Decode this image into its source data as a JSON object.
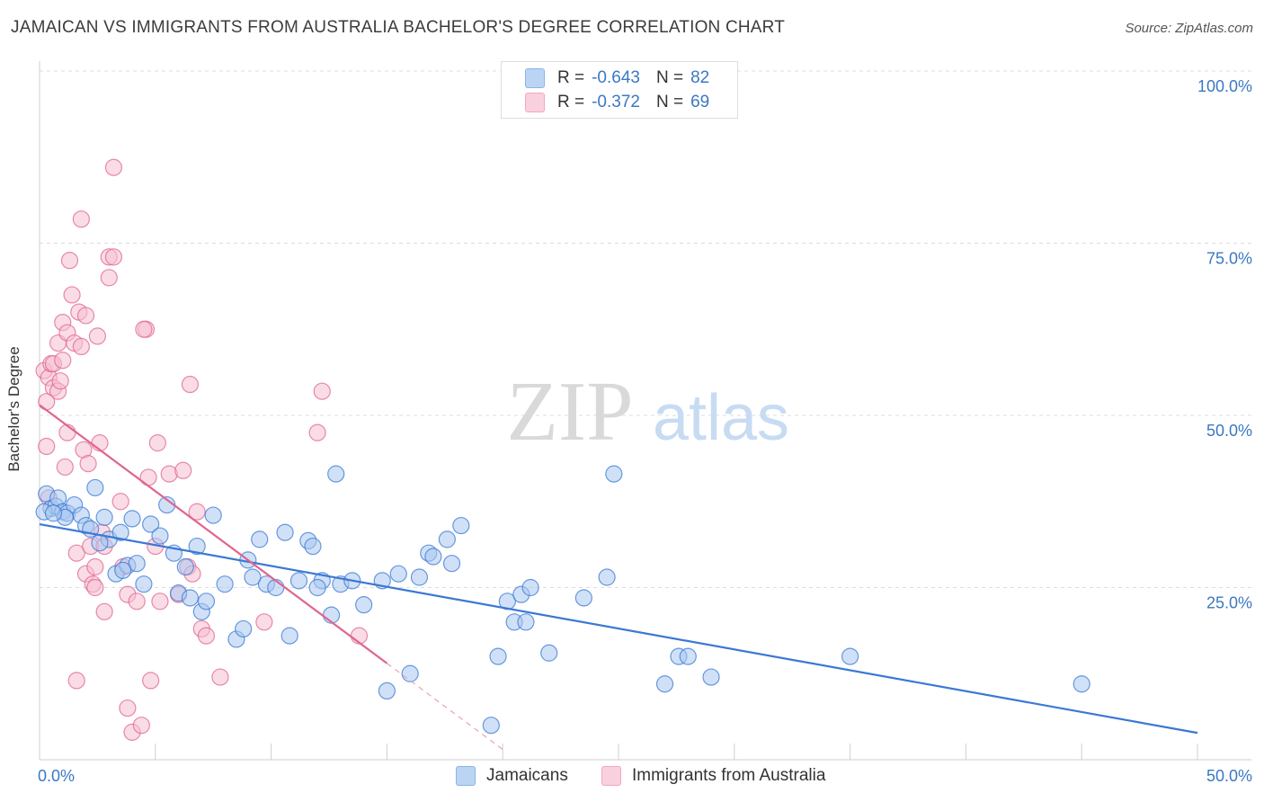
{
  "title": "JAMAICAN VS IMMIGRANTS FROM AUSTRALIA BACHELOR'S DEGREE CORRELATION CHART",
  "source": "Source: ZipAtlas.com",
  "watermark": {
    "zip": "ZIP",
    "atlas": "atlas"
  },
  "legend": {
    "rows": [
      {
        "r_label": "R =",
        "r_value": "-0.643",
        "n_label": "N =",
        "n_value": "82",
        "color": "#8ab4ea"
      },
      {
        "r_label": "R =",
        "r_value": "-0.372",
        "n_label": "N =",
        "n_value": "69",
        "color": "#f4a7c0"
      }
    ]
  },
  "bottom_legend": [
    {
      "label": "Jamaicans",
      "color": "#8ab4ea"
    },
    {
      "label": "Immigrants from Australia",
      "color": "#f4a7c0"
    }
  ],
  "chart_data": {
    "type": "scatter",
    "title": "JAMAICAN VS IMMIGRANTS FROM AUSTRALIA BACHELOR'S DEGREE CORRELATION CHART",
    "xlabel": "",
    "ylabel": "Bachelor's Degree",
    "xlim": [
      0,
      50
    ],
    "ylim": [
      0,
      100
    ],
    "x_tick_labels": [
      "0.0%",
      "50.0%"
    ],
    "y_tick_labels": [
      "25.0%",
      "50.0%",
      "75.0%",
      "100.0%"
    ],
    "y_ticks": [
      25,
      50,
      75,
      100
    ],
    "grid": true,
    "legend_position": "top-center",
    "series": [
      {
        "name": "Jamaicans",
        "color": "#3b78d4",
        "fill": "#a9c8f0",
        "trend": {
          "x": [
            0,
            50
          ],
          "y": [
            34.2,
            3.9
          ]
        },
        "points": [
          [
            0.3,
            38.6
          ],
          [
            0.5,
            36.5
          ],
          [
            0.7,
            36.8
          ],
          [
            0.8,
            38.0
          ],
          [
            1.0,
            36.0
          ],
          [
            1.2,
            35.8
          ],
          [
            1.5,
            37.0
          ],
          [
            1.8,
            35.5
          ],
          [
            2.0,
            34.0
          ],
          [
            2.2,
            33.5
          ],
          [
            2.4,
            39.5
          ],
          [
            2.8,
            35.2
          ],
          [
            3.0,
            32.0
          ],
          [
            3.3,
            27.0
          ],
          [
            3.5,
            33.0
          ],
          [
            3.8,
            28.2
          ],
          [
            4.2,
            28.5
          ],
          [
            4.0,
            35.0
          ],
          [
            4.5,
            25.5
          ],
          [
            4.8,
            34.2
          ],
          [
            5.2,
            32.5
          ],
          [
            5.5,
            37.0
          ],
          [
            5.8,
            30.0
          ],
          [
            6.0,
            24.2
          ],
          [
            6.3,
            28.0
          ],
          [
            6.5,
            23.5
          ],
          [
            6.8,
            31.0
          ],
          [
            7.0,
            21.5
          ],
          [
            7.5,
            35.5
          ],
          [
            8.0,
            25.5
          ],
          [
            8.5,
            17.5
          ],
          [
            8.8,
            19.0
          ],
          [
            9.0,
            29.0
          ],
          [
            9.5,
            32.0
          ],
          [
            9.8,
            25.5
          ],
          [
            10.2,
            25.0
          ],
          [
            10.6,
            33.0
          ],
          [
            10.8,
            18.0
          ],
          [
            11.2,
            26.0
          ],
          [
            11.6,
            31.8
          ],
          [
            11.8,
            31.0
          ],
          [
            12.2,
            26.0
          ],
          [
            12.6,
            21.0
          ],
          [
            12.8,
            41.5
          ],
          [
            13.0,
            25.5
          ],
          [
            14.0,
            22.5
          ],
          [
            14.8,
            26.0
          ],
          [
            15.0,
            10.0
          ],
          [
            15.5,
            27.0
          ],
          [
            16.0,
            12.5
          ],
          [
            16.4,
            26.5
          ],
          [
            16.8,
            30.0
          ],
          [
            17.6,
            32.0
          ],
          [
            17.8,
            28.5
          ],
          [
            18.2,
            34.0
          ],
          [
            19.5,
            5.0
          ],
          [
            19.8,
            15.0
          ],
          [
            20.2,
            23.0
          ],
          [
            20.5,
            20.0
          ],
          [
            20.8,
            24.0
          ],
          [
            21.0,
            20.0
          ],
          [
            21.2,
            25.0
          ],
          [
            22.0,
            15.5
          ],
          [
            23.5,
            23.5
          ],
          [
            24.5,
            26.5
          ],
          [
            24.8,
            41.5
          ],
          [
            27.0,
            11.0
          ],
          [
            27.6,
            15.0
          ],
          [
            28.0,
            15.0
          ],
          [
            29.0,
            12.0
          ],
          [
            35.0,
            15.0
          ],
          [
            45.0,
            11.0
          ],
          [
            0.2,
            36.0
          ],
          [
            1.1,
            35.2
          ],
          [
            2.6,
            31.5
          ],
          [
            7.2,
            23.0
          ],
          [
            9.2,
            26.5
          ],
          [
            12.0,
            25.0
          ],
          [
            13.5,
            26.0
          ],
          [
            17.0,
            29.5
          ],
          [
            0.6,
            35.8
          ],
          [
            3.6,
            27.5
          ]
        ]
      },
      {
        "name": "Immigrants from Australia",
        "color": "#e0648f",
        "fill": "#f6bfd1",
        "trend": {
          "x": [
            0,
            15
          ],
          "y": [
            51.5,
            14.0
          ]
        },
        "trend_dashed": {
          "x": [
            15,
            20
          ],
          "y": [
            14.0,
            1.5
          ]
        },
        "points": [
          [
            0.2,
            56.5
          ],
          [
            0.3,
            52.0
          ],
          [
            0.3,
            45.5
          ],
          [
            0.4,
            38.0
          ],
          [
            0.4,
            55.5
          ],
          [
            0.5,
            57.5
          ],
          [
            0.6,
            57.5
          ],
          [
            0.6,
            54.0
          ],
          [
            0.8,
            53.5
          ],
          [
            0.8,
            60.5
          ],
          [
            0.9,
            55.0
          ],
          [
            1.0,
            63.5
          ],
          [
            1.0,
            58.0
          ],
          [
            1.1,
            42.5
          ],
          [
            1.2,
            47.5
          ],
          [
            1.2,
            62.0
          ],
          [
            1.3,
            72.5
          ],
          [
            1.4,
            67.5
          ],
          [
            1.5,
            60.5
          ],
          [
            1.6,
            30.0
          ],
          [
            1.6,
            11.5
          ],
          [
            1.7,
            65.0
          ],
          [
            1.8,
            78.5
          ],
          [
            1.8,
            60.0
          ],
          [
            1.9,
            45.0
          ],
          [
            2.0,
            27.0
          ],
          [
            2.0,
            64.5
          ],
          [
            2.1,
            43.0
          ],
          [
            2.2,
            31.0
          ],
          [
            2.3,
            25.5
          ],
          [
            2.4,
            28.0
          ],
          [
            2.4,
            25.0
          ],
          [
            2.5,
            61.5
          ],
          [
            2.6,
            46.0
          ],
          [
            2.7,
            33.0
          ],
          [
            2.8,
            21.5
          ],
          [
            2.8,
            31.0
          ],
          [
            3.0,
            70.0
          ],
          [
            3.0,
            73.0
          ],
          [
            3.2,
            73.0
          ],
          [
            3.2,
            86.0
          ],
          [
            3.5,
            37.5
          ],
          [
            3.6,
            28.0
          ],
          [
            3.8,
            7.5
          ],
          [
            3.8,
            24.0
          ],
          [
            4.0,
            4.0
          ],
          [
            4.2,
            23.0
          ],
          [
            4.4,
            5.0
          ],
          [
            4.6,
            62.5
          ],
          [
            4.7,
            41.0
          ],
          [
            4.8,
            11.5
          ],
          [
            5.0,
            31.0
          ],
          [
            5.1,
            46.0
          ],
          [
            5.2,
            23.0
          ],
          [
            5.6,
            41.5
          ],
          [
            6.0,
            24.0
          ],
          [
            6.2,
            42.0
          ],
          [
            6.4,
            28.0
          ],
          [
            6.6,
            27.0
          ],
          [
            6.5,
            54.5
          ],
          [
            6.8,
            36.0
          ],
          [
            7.0,
            19.0
          ],
          [
            7.2,
            18.0
          ],
          [
            7.8,
            12.0
          ],
          [
            9.7,
            20.0
          ],
          [
            12.0,
            47.5
          ],
          [
            12.2,
            53.5
          ],
          [
            13.8,
            18.0
          ],
          [
            4.5,
            62.5
          ]
        ]
      }
    ]
  }
}
